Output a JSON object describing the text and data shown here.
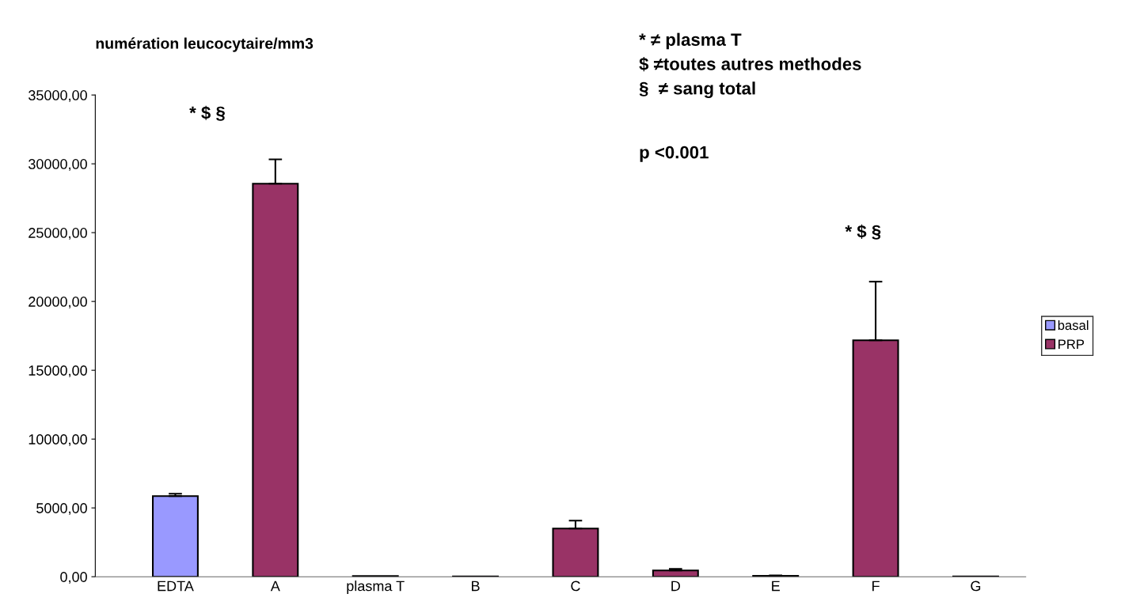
{
  "chart_data": {
    "type": "bar",
    "title": "numération leucocytaire/mm3",
    "categories": [
      "EDTA",
      "A",
      "plasma T",
      "B",
      "C",
      "D",
      "E",
      "F",
      "G"
    ],
    "series": [
      {
        "name": "basal",
        "color": "#9999ff",
        "values": [
          5860,
          null,
          50,
          null,
          null,
          null,
          null,
          null,
          null
        ],
        "errors": [
          [
            5860,
            6030
          ],
          null,
          null,
          null,
          null,
          null,
          null,
          null,
          null
        ]
      },
      {
        "name": "PRP",
        "color": "#993366",
        "values": [
          null,
          28560,
          null,
          20,
          3500,
          460,
          60,
          17180,
          20
        ],
        "errors": [
          null,
          [
            28560,
            30320
          ],
          null,
          null,
          [
            3500,
            4080
          ],
          [
            460,
            575
          ],
          [
            60,
            100
          ],
          [
            17180,
            21440
          ],
          null
        ]
      }
    ],
    "ylim": [
      0,
      35000
    ],
    "yticks": [
      {
        "value": 0,
        "label": "0,00"
      },
      {
        "value": 5000,
        "label": "5000,00"
      },
      {
        "value": 10000,
        "label": "10000,00"
      },
      {
        "value": 15000,
        "label": "15000,00"
      },
      {
        "value": 20000,
        "label": "20000,00"
      },
      {
        "value": 25000,
        "label": "25000,00"
      },
      {
        "value": 30000,
        "label": "30000,00"
      },
      {
        "value": 35000,
        "label": "35000,00"
      }
    ],
    "grid": false,
    "legend": "right",
    "annotations": [
      "* $ §",
      "* $ §",
      "* ≠ plasma T",
      "$ ≠toutes autres methodes",
      "§  ≠ sang total",
      "p <0.001"
    ]
  }
}
